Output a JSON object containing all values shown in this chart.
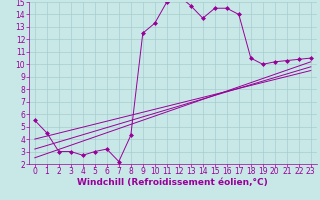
{
  "xlabel": "Windchill (Refroidissement éolien,°C)",
  "xlim": [
    -0.5,
    23.5
  ],
  "ylim": [
    2,
    15
  ],
  "xticks": [
    0,
    1,
    2,
    3,
    4,
    5,
    6,
    7,
    8,
    9,
    10,
    11,
    12,
    13,
    14,
    15,
    16,
    17,
    18,
    19,
    20,
    21,
    22,
    23
  ],
  "yticks": [
    2,
    3,
    4,
    5,
    6,
    7,
    8,
    9,
    10,
    11,
    12,
    13,
    14,
    15
  ],
  "bg_color": "#c8e8e8",
  "grid_color": "#a8cccc",
  "line_color": "#990099",
  "main_curve_x": [
    0,
    1,
    2,
    3,
    4,
    5,
    6,
    7,
    8,
    9,
    10,
    11,
    12,
    13,
    14,
    15,
    16,
    17,
    18,
    19,
    20,
    21,
    22,
    23
  ],
  "main_curve_y": [
    5.5,
    4.5,
    3.0,
    3.0,
    2.7,
    3.0,
    3.2,
    2.2,
    4.3,
    12.5,
    13.3,
    15.0,
    15.5,
    14.7,
    13.7,
    14.5,
    14.5,
    14.0,
    10.5,
    10.0,
    10.2,
    10.3,
    10.4,
    10.5
  ],
  "trend1_x": [
    0,
    23
  ],
  "trend1_y": [
    2.5,
    10.2
  ],
  "trend2_x": [
    0,
    23
  ],
  "trend2_y": [
    3.2,
    9.8
  ],
  "trend3_x": [
    0,
    23
  ],
  "trend3_y": [
    4.0,
    9.5
  ],
  "tick_fontsize": 5.5,
  "xlabel_fontsize": 6.5
}
